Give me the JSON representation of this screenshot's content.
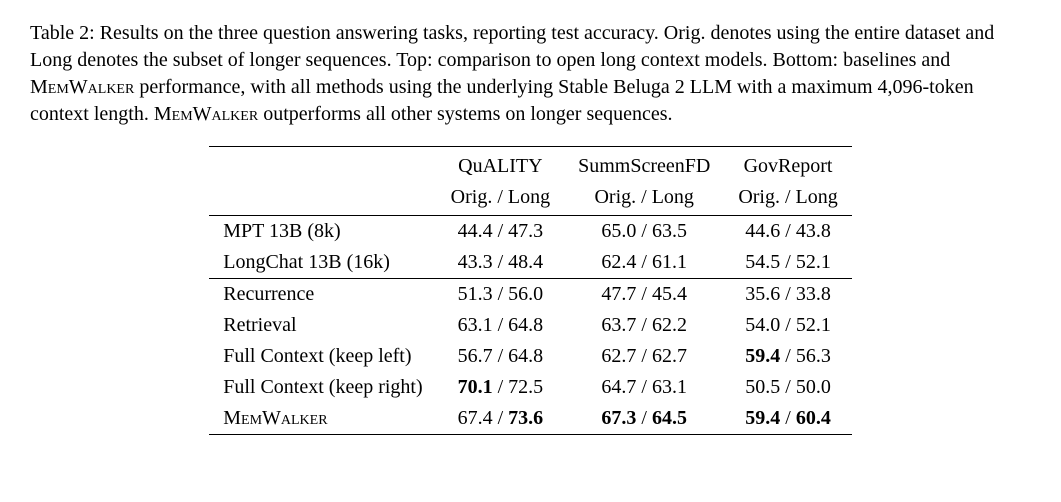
{
  "caption": {
    "prefix": "Table 2: Results on the three question answering tasks, reporting test accuracy. Orig. denotes using the entire dataset and Long denotes the subset of longer sequences. Top: comparison to open long context models. Bottom: baselines and ",
    "mw1": "MemWalker",
    "mid": " performance, with all methods using the underlying Stable Beluga 2 LLM with a maximum 4,096-token context length. ",
    "mw2": "MemWalker",
    "suffix": " outperforms all other systems on longer sequences."
  },
  "headers": {
    "quality": "QuALITY",
    "summ": "SummScreenFD",
    "gov": "GovReport",
    "sub": "Orig. / Long"
  },
  "top_rows": [
    {
      "label": "MPT 13B (8k)",
      "quality": {
        "o": "44.4",
        "l": "47.3",
        "ob": false,
        "lb": false
      },
      "summ": {
        "o": "65.0",
        "l": "63.5",
        "ob": false,
        "lb": false
      },
      "gov": {
        "o": "44.6",
        "l": "43.8",
        "ob": false,
        "lb": false
      }
    },
    {
      "label": "LongChat 13B (16k)",
      "quality": {
        "o": "43.3",
        "l": "48.4",
        "ob": false,
        "lb": false
      },
      "summ": {
        "o": "62.4",
        "l": "61.1",
        "ob": false,
        "lb": false
      },
      "gov": {
        "o": "54.5",
        "l": "52.1",
        "ob": false,
        "lb": false
      }
    }
  ],
  "bottom_rows": [
    {
      "label": "Recurrence",
      "sc": false,
      "quality": {
        "o": "51.3",
        "l": "56.0",
        "ob": false,
        "lb": false
      },
      "summ": {
        "o": "47.7",
        "l": "45.4",
        "ob": false,
        "lb": false
      },
      "gov": {
        "o": "35.6",
        "l": "33.8",
        "ob": false,
        "lb": false
      }
    },
    {
      "label": "Retrieval",
      "sc": false,
      "quality": {
        "o": "63.1",
        "l": "64.8",
        "ob": false,
        "lb": false
      },
      "summ": {
        "o": "63.7",
        "l": "62.2",
        "ob": false,
        "lb": false
      },
      "gov": {
        "o": "54.0",
        "l": "52.1",
        "ob": false,
        "lb": false
      }
    },
    {
      "label": "Full Context (keep left)",
      "sc": false,
      "quality": {
        "o": "56.7",
        "l": "64.8",
        "ob": false,
        "lb": false
      },
      "summ": {
        "o": "62.7",
        "l": "62.7",
        "ob": false,
        "lb": false
      },
      "gov": {
        "o": "59.4",
        "l": "56.3",
        "ob": true,
        "lb": false
      }
    },
    {
      "label": "Full Context (keep right)",
      "sc": false,
      "quality": {
        "o": "70.1",
        "l": "72.5",
        "ob": true,
        "lb": false
      },
      "summ": {
        "o": "64.7",
        "l": "63.1",
        "ob": false,
        "lb": false
      },
      "gov": {
        "o": "50.5",
        "l": "50.0",
        "ob": false,
        "lb": false
      }
    },
    {
      "label": "MemWalker",
      "sc": true,
      "quality": {
        "o": "67.4",
        "l": "73.6",
        "ob": false,
        "lb": true
      },
      "summ": {
        "o": "67.3",
        "l": "64.5",
        "ob": true,
        "lb": true
      },
      "gov": {
        "o": "59.4",
        "l": "60.4",
        "ob": true,
        "lb": true
      }
    }
  ]
}
